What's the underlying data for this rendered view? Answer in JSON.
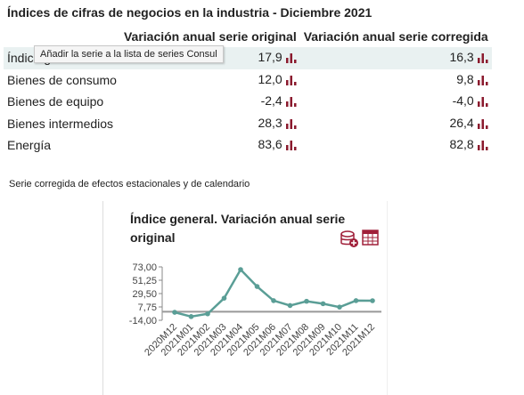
{
  "header": {
    "title": "Índices de cifras de negocios en la industria - Diciembre 2021"
  },
  "table": {
    "columns": [
      "Variación anual serie original",
      "Variación anual serie corregida"
    ],
    "rows": [
      [
        "Índice general",
        "17,9",
        "16,3"
      ],
      [
        "Bienes de consumo",
        "12,0",
        "9,8"
      ],
      [
        "Bienes de equipo",
        "-2,4",
        "-4,0"
      ],
      [
        "Bienes intermedios",
        "28,3",
        "26,4"
      ],
      [
        "Energía",
        "83,6",
        "82,8"
      ]
    ]
  },
  "tooltip": "Añadir la serie a la lista de series Consul",
  "note": "Serie corregida de efectos estacionales y de calendario",
  "chart_data": {
    "type": "line",
    "title": "Índice general. Variación anual serie original",
    "categories": [
      "2020M12",
      "2021M01",
      "2021M02",
      "2021M03",
      "2021M04",
      "2021M05",
      "2021M06",
      "2021M07",
      "2021M08",
      "2021M09",
      "2021M10",
      "2021M11",
      "2021M12"
    ],
    "series": [
      {
        "name": "Índice general",
        "color": "#5a9e96",
        "values": [
          -1,
          -8,
          -3.5,
          22,
          68.6,
          41,
          18,
          10,
          17,
          13,
          7.5,
          18,
          17.9
        ]
      }
    ],
    "ylim": [
      -14,
      73
    ],
    "yticks": [
      {
        "value": 73,
        "label": "73,00"
      },
      {
        "value": 51.25,
        "label": "51,25"
      },
      {
        "value": 29.5,
        "label": "29,50"
      },
      {
        "value": 7.75,
        "label": "7,75"
      },
      {
        "value": -14,
        "label": "-14,00"
      }
    ]
  }
}
